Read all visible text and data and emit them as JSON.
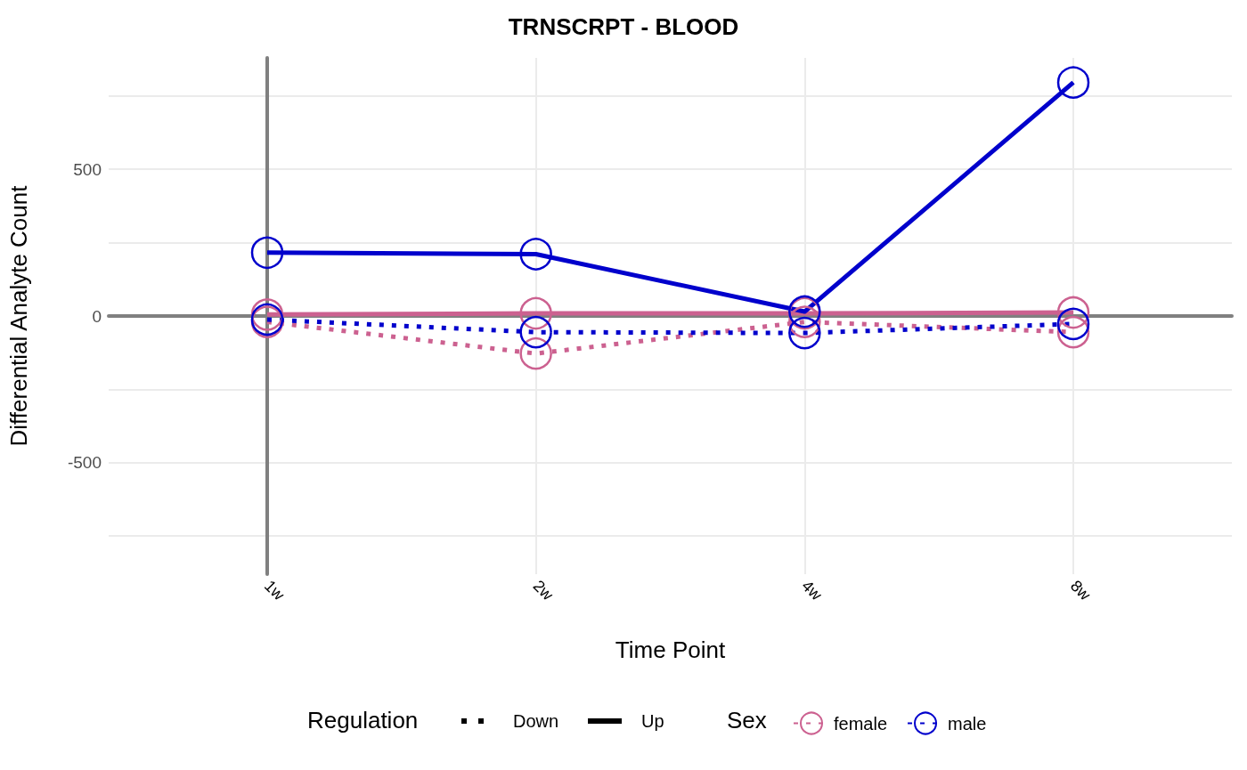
{
  "chart_data": {
    "type": "line",
    "title": "TRNSCRPT - BLOOD",
    "xlabel": "Time Point",
    "ylabel": "Differential Analyte Count",
    "categories": [
      "1w",
      "2w",
      "4w",
      "8w"
    ],
    "series": [
      {
        "name": "female",
        "color": "#cc6190",
        "line_style": "dotted",
        "values": [
          -20,
          -128,
          -20,
          -55
        ]
      },
      {
        "color": "#cc6190",
        "line_style": "solid",
        "values": [
          5,
          9,
          9,
          12
        ]
      },
      {
        "name": "male",
        "color": "#0000cc",
        "line_style": "dotted",
        "values": [
          -12,
          -55,
          -58,
          -27
        ]
      },
      {
        "color": "#0000cc",
        "line_style": "solid",
        "values": [
          216,
          211,
          15,
          796
        ]
      }
    ],
    "ylim": [
      -880,
      880
    ],
    "yticks": [
      {
        "value": -750,
        "label": null
      },
      -500,
      {
        "value": -250,
        "label": null
      },
      0,
      {
        "value": 250,
        "label": null
      },
      500,
      {
        "value": 750,
        "label": null
      }
    ],
    "grid": true,
    "marker": "circle",
    "legend": "bottom",
    "legend_title": "Sex",
    "annotations": [
      "Regulation",
      "Down",
      "Up"
    ]
  }
}
